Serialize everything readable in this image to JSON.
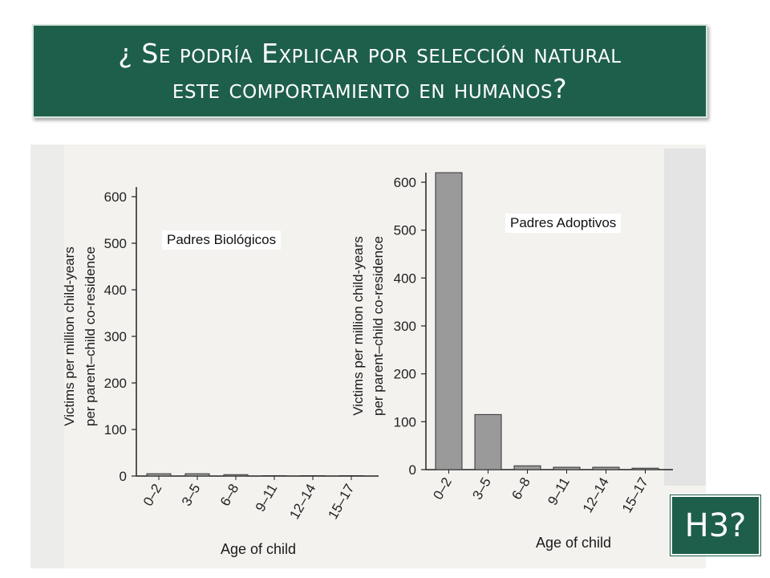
{
  "title": {
    "line1": "¿ Se podría Explicar por selección natural",
    "line2": "este comportamiento en humanos?"
  },
  "corner_box": {
    "label": "H3?"
  },
  "colors": {
    "banner": "#1e5f4b",
    "bar_fill": "#9a9a9a",
    "bar_stroke": "#333333"
  },
  "chart_data": [
    {
      "type": "bar",
      "panel_label": "Padres Biológicos",
      "categories": [
        "0–2",
        "3–5",
        "6–8",
        "9–11",
        "12–14",
        "15–17"
      ],
      "values": [
        5,
        5,
        3,
        0,
        0,
        0
      ],
      "xlabel": "Age of child",
      "ylabel": [
        "Victims per million child-years",
        "per parent–child co-residence"
      ],
      "ylim": [
        0,
        600
      ],
      "yticks": [
        0,
        100,
        200,
        300,
        400,
        500,
        600
      ]
    },
    {
      "type": "bar",
      "panel_label": "Padres Adoptivos",
      "categories": [
        "0–2",
        "3–5",
        "6–8",
        "9–11",
        "12–14",
        "15–17"
      ],
      "values": [
        620,
        115,
        8,
        5,
        5,
        3
      ],
      "xlabel": "Age of child",
      "ylabel": [
        "Victims per million child-years",
        "per parent–child co-residence"
      ],
      "ylim": [
        0,
        600
      ],
      "yticks": [
        0,
        100,
        200,
        300,
        400,
        500,
        600
      ]
    }
  ]
}
